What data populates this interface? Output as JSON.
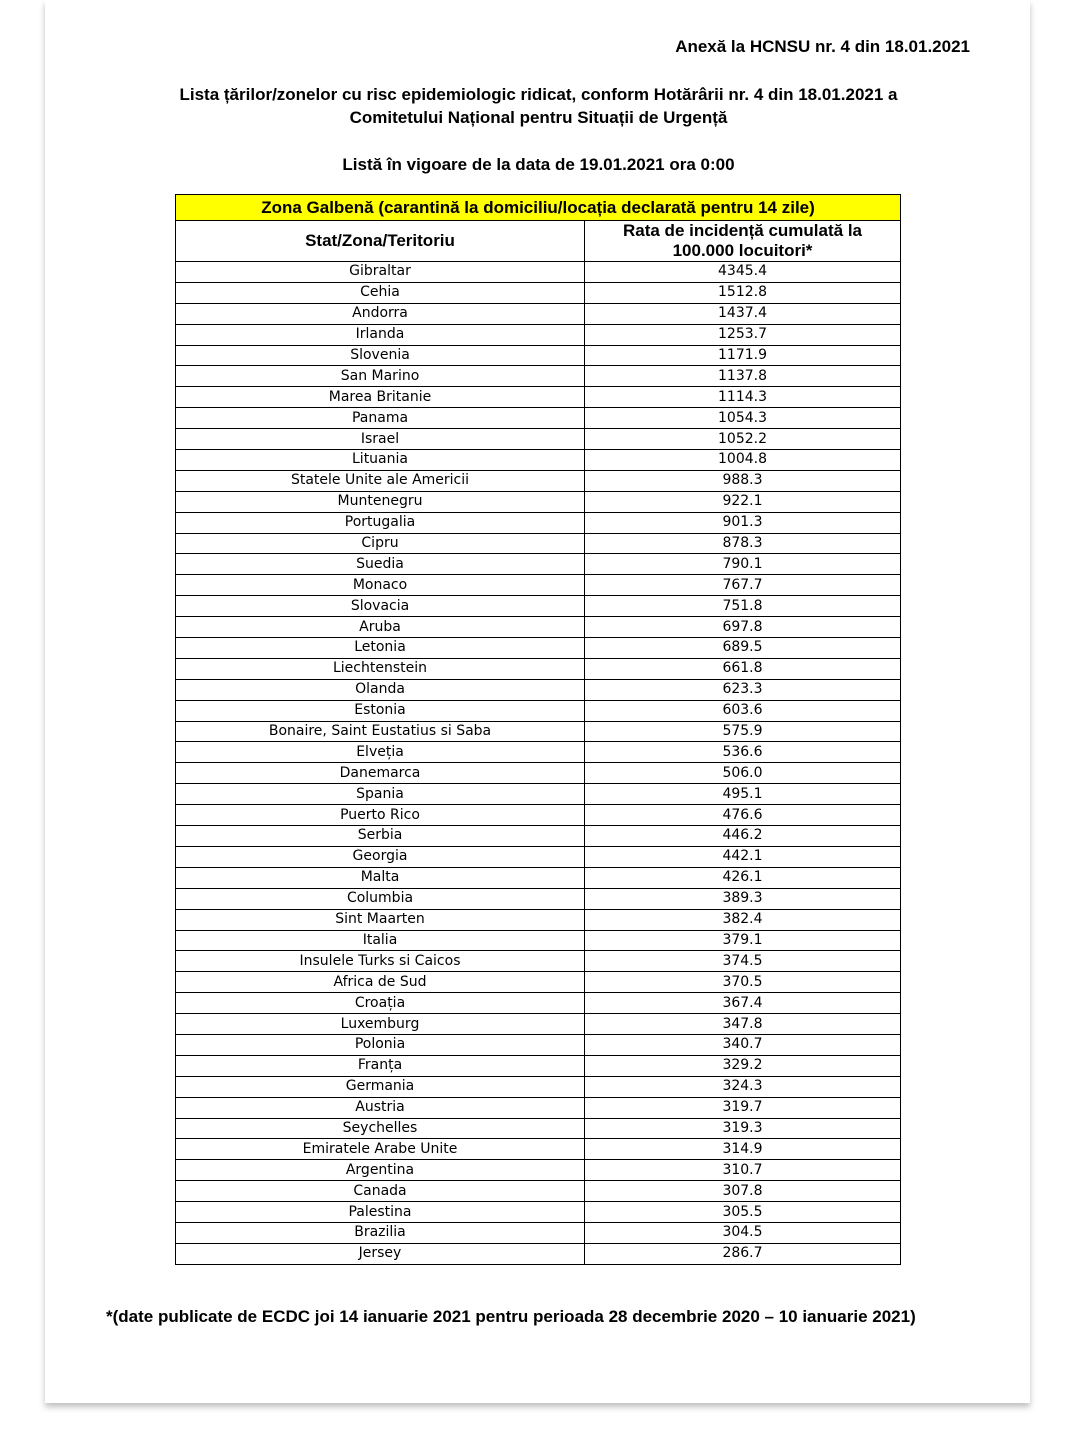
{
  "annex": "Anexă la HCNSU nr. 4 din 18.01.2021",
  "title_line1": "Lista țărilor/zonelor cu risc epidemiologic ridicat, conform Hotărârii nr. 4 din 18.01.2021 a",
  "title_line2": "Comitetului Național pentru Situații de Urgență",
  "subtitle": "Listă în vigoare de la data de 19.01.2021 ora 0:00",
  "table": {
    "zone_header": "Zona Galbenă (carantină la domiciliu/locația declarată pentru 14 zile)",
    "zone_color": "#ffff00",
    "col1": "Stat/Zona/Teritoriu",
    "col2_line1": "Rata de incidență cumulată la",
    "col2_line2": "100.000 locuitori*",
    "rows": [
      [
        "Gibraltar",
        "4345.4"
      ],
      [
        "Cehia",
        "1512.8"
      ],
      [
        "Andorra",
        "1437.4"
      ],
      [
        "Irlanda",
        "1253.7"
      ],
      [
        "Slovenia",
        "1171.9"
      ],
      [
        "San Marino",
        "1137.8"
      ],
      [
        "Marea Britanie",
        "1114.3"
      ],
      [
        "Panama",
        "1054.3"
      ],
      [
        "Israel",
        "1052.2"
      ],
      [
        "Lituania",
        "1004.8"
      ],
      [
        "Statele Unite ale Americii",
        "988.3"
      ],
      [
        "Muntenegru",
        "922.1"
      ],
      [
        "Portugalia",
        "901.3"
      ],
      [
        "Cipru",
        "878.3"
      ],
      [
        "Suedia",
        "790.1"
      ],
      [
        "Monaco",
        "767.7"
      ],
      [
        "Slovacia",
        "751.8"
      ],
      [
        "Aruba",
        "697.8"
      ],
      [
        "Letonia",
        "689.5"
      ],
      [
        "Liechtenstein",
        "661.8"
      ],
      [
        "Olanda",
        "623.3"
      ],
      [
        "Estonia",
        "603.6"
      ],
      [
        "Bonaire, Saint Eustatius si Saba",
        "575.9"
      ],
      [
        "Elveția",
        "536.6"
      ],
      [
        "Danemarca",
        "506.0"
      ],
      [
        "Spania",
        "495.1"
      ],
      [
        "Puerto Rico",
        "476.6"
      ],
      [
        "Serbia",
        "446.2"
      ],
      [
        "Georgia",
        "442.1"
      ],
      [
        "Malta",
        "426.1"
      ],
      [
        "Columbia",
        "389.3"
      ],
      [
        "Sint Maarten",
        "382.4"
      ],
      [
        "Italia",
        "379.1"
      ],
      [
        "Insulele Turks si Caicos",
        "374.5"
      ],
      [
        "Africa de Sud",
        "370.5"
      ],
      [
        "Croația",
        "367.4"
      ],
      [
        "Luxemburg",
        "347.8"
      ],
      [
        "Polonia",
        "340.7"
      ],
      [
        "Franța",
        "329.2"
      ],
      [
        "Germania",
        "324.3"
      ],
      [
        "Austria",
        "319.7"
      ],
      [
        "Seychelles",
        "319.3"
      ],
      [
        "Emiratele Arabe Unite",
        "314.9"
      ],
      [
        "Argentina",
        "310.7"
      ],
      [
        "Canada",
        "307.8"
      ],
      [
        "Palestina",
        "305.5"
      ],
      [
        "Brazilia",
        "304.5"
      ],
      [
        "Jersey",
        "286.7"
      ]
    ]
  },
  "footnote": "*(date publicate de ECDC joi 14 ianuarie 2021 pentru perioada 28 decembrie 2020 – 10 ianuarie 2021)"
}
